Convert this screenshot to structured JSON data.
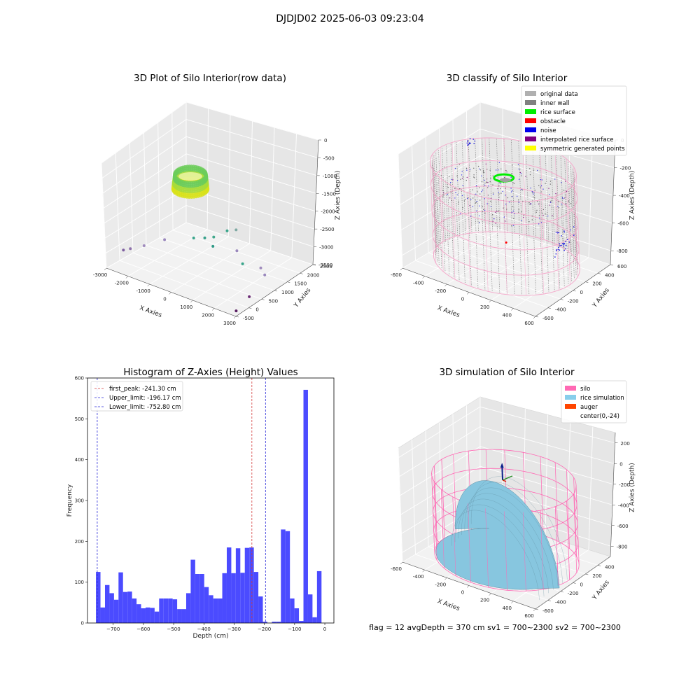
{
  "figure": {
    "suptitle": "DJDJD02 2025-06-03 09:23:04",
    "footer": "flag = 12   avgDepth = 370 cm  sv1 = 700~2300  sv2 = 700~2300"
  },
  "chart_data": [
    {
      "type": "scatter3d",
      "title": "3D Plot of Silo Interior(row data)",
      "xlabel": "X Axies",
      "ylabel": "Y Axies",
      "zlabel": "Z Axies (Depth)",
      "x_ticks": [
        "-3000",
        "-2000",
        "-1000",
        "0",
        "1000",
        "2000",
        "3000"
      ],
      "y_ticks": [
        "-500",
        "0",
        "500",
        "1000",
        "1500",
        "2000",
        "2500"
      ],
      "z_ticks": [
        "0",
        "-500",
        "-1000",
        "-1500",
        "-2000",
        "-2500",
        "-3000",
        "-3500"
      ],
      "xlim": [
        -3000,
        3000
      ],
      "ylim": [
        -500,
        2500
      ],
      "zlim": [
        -3500,
        0
      ],
      "ring_colors": [
        "#d8e21a",
        "#a8dc3a",
        "#6ccd5a"
      ],
      "outliers": [
        {
          "x": -2800,
          "y": 0,
          "z": -3100,
          "color": "#7e5fa0"
        },
        {
          "x": -2600,
          "y": 100,
          "z": -3050,
          "color": "#8f72ac"
        },
        {
          "x": -2200,
          "y": 300,
          "z": -2950,
          "color": "#a08bbd"
        },
        {
          "x": -1600,
          "y": 600,
          "z": -2750,
          "color": "#9a88bd"
        },
        {
          "x": -600,
          "y": 900,
          "z": -2600,
          "color": "#3aa58b"
        },
        {
          "x": -200,
          "y": 1000,
          "z": -2550,
          "color": "#35a08a"
        },
        {
          "x": 100,
          "y": 1100,
          "z": -2500,
          "color": "#42a88c"
        },
        {
          "x": 300,
          "y": 900,
          "z": -2650,
          "color": "#2e9a87"
        },
        {
          "x": 500,
          "y": 1300,
          "z": -2300,
          "color": "#3aa58b"
        },
        {
          "x": 800,
          "y": 1400,
          "z": -2250,
          "color": "#7fa9a3"
        },
        {
          "x": 1300,
          "y": 1000,
          "z": -2600,
          "color": "#9a88bd"
        },
        {
          "x": 1800,
          "y": 800,
          "z": -2800,
          "color": "#3aa58b"
        },
        {
          "x": 2400,
          "y": 1000,
          "z": -2900,
          "color": "#a08bbd"
        },
        {
          "x": 2700,
          "y": 900,
          "z": -3000,
          "color": "#9a88bd"
        },
        {
          "x": 2800,
          "y": 200,
          "z": -3300,
          "color": "#6c2d76"
        },
        {
          "x": 2900,
          "y": -400,
          "z": -3400,
          "color": "#5a1f63"
        }
      ]
    },
    {
      "type": "scatter3d",
      "title": "3D classify of Silo Interior",
      "xlabel": "X Axies",
      "ylabel": "Y Axies",
      "zlabel": "Z Axies (Depth)",
      "x_ticks": [
        "-600",
        "-400",
        "-200",
        "0",
        "200",
        "400",
        "600"
      ],
      "y_ticks": [
        "-600",
        "-400",
        "-200",
        "0",
        "200",
        "400",
        "600"
      ],
      "z_ticks": [
        "0",
        "-200",
        "-400",
        "-600",
        "-800"
      ],
      "xlim": [
        -600,
        600
      ],
      "ylim": [
        -600,
        600
      ],
      "zlim": [
        -900,
        0
      ],
      "legend_position": "top-right",
      "legend": [
        {
          "label": "original data",
          "color": "#b0b0b0"
        },
        {
          "label": "inner wall",
          "color": "#808080"
        },
        {
          "label": "rice surface",
          "color": "#00ee00"
        },
        {
          "label": "obstacle",
          "color": "#ff0000"
        },
        {
          "label": "noise",
          "color": "#0000ee"
        },
        {
          "label": "interpolated rice surface",
          "color": "#800080"
        },
        {
          "label": "symmetric generated points",
          "color": "#ffff00"
        }
      ],
      "wire_color": "#f4a6c9"
    },
    {
      "type": "histogram",
      "title": "Histogram of Z-Axies (Height) Values",
      "xlabel": "Depth (cm)",
      "ylabel": "Frequency",
      "xlim": [
        -785,
        30
      ],
      "ylim": [
        0,
        600
      ],
      "x_ticks": [
        -700,
        -600,
        -500,
        -400,
        -300,
        -200,
        -100,
        0
      ],
      "y_ticks": [
        0,
        100,
        200,
        300,
        400,
        500,
        600
      ],
      "bar_color": "#4b4bff",
      "bins": {
        "start": -757,
        "width": 14.92,
        "values": [
          125,
          38,
          93,
          73,
          57,
          124,
          76,
          77,
          60,
          46,
          36,
          38,
          37,
          28,
          60,
          60,
          60,
          58,
          34,
          34,
          73,
          155,
          120,
          120,
          88,
          68,
          60,
          60,
          122,
          185,
          122,
          183,
          123,
          184,
          185,
          125,
          65,
          3,
          0,
          3,
          3,
          229,
          225,
          60,
          36,
          5,
          571,
          70,
          14,
          127
        ]
      },
      "lines": [
        {
          "label": "first_peak: -241.30 cm",
          "x": -241.3,
          "color": "#d43a3a"
        },
        {
          "label": "Upper_limit: -196.17 cm",
          "x": -196.17,
          "color": "#2a2ad8"
        },
        {
          "label": "Lower_limit: -752.80 cm",
          "x": -752.8,
          "color": "#2a2ad8"
        }
      ],
      "legend_position": "top-left"
    },
    {
      "type": "surface3d",
      "title": "3D simulation of Silo Interior",
      "xlabel": "X Axies",
      "ylabel": "Y Axies",
      "zlabel": "Z Axies (Depth)",
      "x_ticks": [
        "-600",
        "-400",
        "-200",
        "0",
        "200",
        "400",
        "600"
      ],
      "y_ticks": [
        "-600",
        "-400",
        "-200",
        "0",
        "200",
        "400"
      ],
      "z_ticks": [
        "200",
        "0",
        "-200",
        "-400",
        "-600",
        "-800"
      ],
      "xlim": [
        -600,
        600
      ],
      "ylim": [
        -600,
        600
      ],
      "zlim": [
        -900,
        300
      ],
      "legend_position": "top-right",
      "legend": [
        {
          "label": "silo",
          "color": "#ff69b4"
        },
        {
          "label": "rice simulation",
          "color": "#87ceeb"
        },
        {
          "label": "auger",
          "color": "#ff4500"
        },
        {
          "label": "center(0,-24)",
          "color": "#ffffff"
        }
      ],
      "surface_color": "#87c6df",
      "wire_color": "#ff69b4"
    }
  ]
}
